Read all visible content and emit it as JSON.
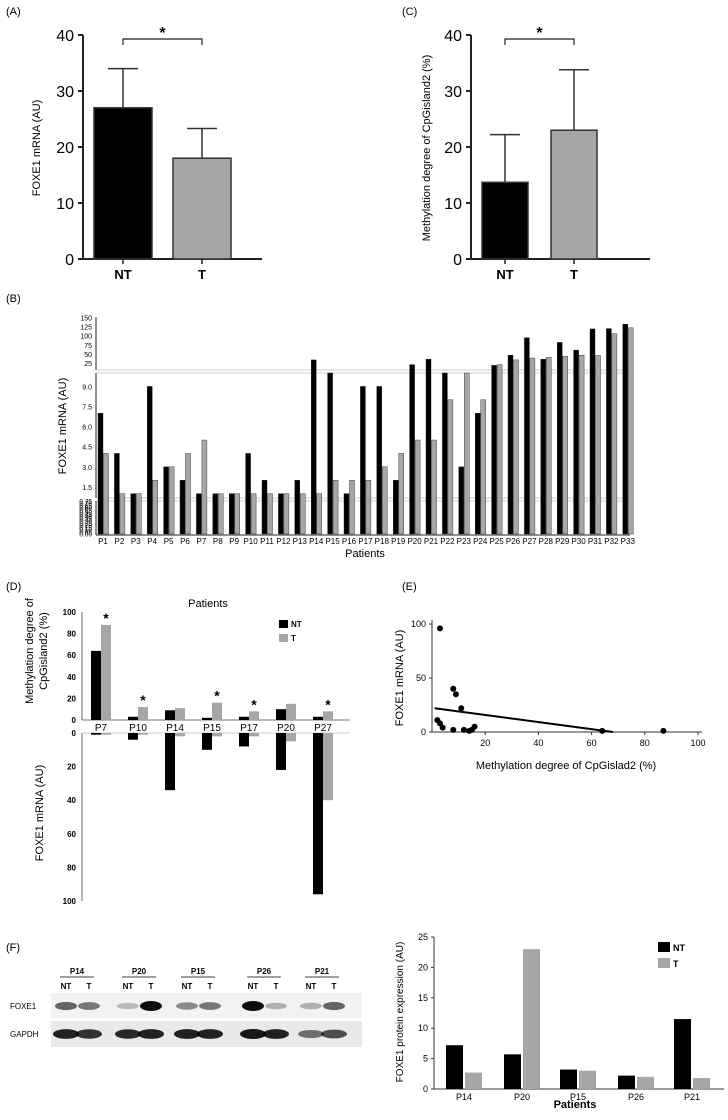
{
  "panels": {
    "A": {
      "label": "(A)",
      "chart_data": {
        "type": "bar",
        "title": "",
        "xlabel": "",
        "ylabel": "FOXE1 mRNA (AU)",
        "categories": [
          "NT",
          "T"
        ],
        "values": [
          27,
          18
        ],
        "errors": [
          7,
          5.3
        ],
        "colors": [
          "#000000",
          "#a6a6a6"
        ],
        "ylim": [
          0,
          40
        ],
        "yticks": [
          0,
          10,
          20,
          30,
          40
        ],
        "significance": "*"
      }
    },
    "C": {
      "label": "(C)",
      "chart_data": {
        "type": "bar",
        "title": "",
        "xlabel": "",
        "ylabel": "Methylation degree of CpGisland2 (%)",
        "categories": [
          "NT",
          "T"
        ],
        "values": [
          13.7,
          23
        ],
        "errors": [
          8.5,
          10.8
        ],
        "colors": [
          "#000000",
          "#a6a6a6"
        ],
        "ylim": [
          0,
          40
        ],
        "yticks": [
          0,
          10,
          20,
          30,
          40
        ],
        "significance": "*"
      }
    },
    "B": {
      "label": "(B)",
      "chart_data": {
        "type": "bar",
        "title": "",
        "xlabel": "Patients",
        "ylabel": "FOXE1 mRNA (AU)",
        "categories": [
          "P1",
          "P2",
          "P3",
          "P4",
          "P5",
          "P6",
          "P7",
          "P8",
          "P9",
          "P10",
          "P11",
          "P12",
          "P13",
          "P14",
          "P15",
          "P16",
          "P17",
          "P18",
          "P19",
          "P20",
          "P21",
          "P22",
          "P23",
          "P24",
          "P25",
          "P26",
          "P27",
          "P28",
          "P29",
          "P30",
          "P31",
          "P32",
          "P33"
        ],
        "series": [
          {
            "name": "NT",
            "color": "#000000",
            "values": [
              7,
              4,
              1,
              9,
              3,
              2,
              1,
              1,
              1,
              4,
              2,
              1,
              2,
              35,
              10,
              1,
              9,
              9,
              2,
              22,
              37,
              10,
              3,
              7,
              20,
              48,
              96,
              37,
              83,
              62,
              120,
              121,
              133
            ]
          },
          {
            "name": "T",
            "color": "#a6a6a6",
            "values": [
              4,
              1,
              1,
              2,
              3,
              4,
              5,
              1,
              1,
              1,
              1,
              1,
              1,
              1,
              2,
              2,
              2,
              3,
              4,
              5,
              5,
              8,
              10,
              8,
              22,
              35,
              40,
              42,
              45,
              48,
              47,
              107,
              123
            ]
          }
        ],
        "axis_segments": {
          "upper": {
            "range": [
              10,
              150
            ],
            "ticks": [
              "25",
              "50",
              "75",
              "100",
              "125",
              "150"
            ]
          },
          "middle": {
            "range": [
              0.75,
              10
            ],
            "ticks": [
              "1.5",
              "3.0",
              "4.5",
              "6.0",
              "7.5",
              "9.0"
            ]
          },
          "lower": {
            "range": [
              0,
              0.75
            ],
            "ticks": [
              "0.00",
              "0.05",
              "0.10",
              "0.15",
              "0.20",
              "0.25",
              "0.30",
              "0.35",
              "0.40",
              "0.45",
              "0.50",
              "0.55",
              "0.60",
              "0.65",
              "0.70",
              "0.75"
            ]
          }
        }
      }
    },
    "D": {
      "label": "(D)",
      "chart_data": {
        "type": "bar",
        "title": "Patients",
        "categories": [
          "P7",
          "P10",
          "P14",
          "P15",
          "P17",
          "P20",
          "P27"
        ],
        "top_ylabel": "Methylation degree of CpGisland2 (%)",
        "bottom_ylabel": "FOXE1 mRNA (AU)",
        "top_yticks": [
          "100",
          "80",
          "60",
          "40",
          "20",
          "0"
        ],
        "bottom_yticks": [
          "0",
          "20",
          "40",
          "60",
          "80",
          "100"
        ],
        "top_ylim": [
          0,
          100
        ],
        "bottom_ylim": [
          0,
          100
        ],
        "significance": [
          "*",
          "*",
          "",
          "*",
          "*",
          "",
          "*"
        ],
        "top_series": [
          {
            "name": "NT",
            "color": "#000000",
            "values": [
              64,
              3,
              9,
              2,
              3,
              10,
              3
            ]
          },
          {
            "name": "T",
            "color": "#a6a6a6",
            "values": [
              88,
              12,
              11,
              16,
              8,
              15,
              8
            ]
          }
        ],
        "bottom_series": [
          {
            "name": "NT",
            "color": "#000000",
            "values": [
              1,
              4,
              34,
              10,
              8,
              22,
              96
            ]
          },
          {
            "name": "T",
            "color": "#a6a6a6",
            "values": [
              1,
              1,
              2,
              2,
              2,
              5,
              40
            ]
          }
        ],
        "legend": [
          "NT",
          "T"
        ]
      }
    },
    "E": {
      "label": "(E)",
      "chart_data": {
        "type": "scatter",
        "title": "",
        "xlabel": "Methylation degree of CpGislad2 (%)",
        "ylabel": "FOXE1 mRNA (AU)",
        "xlim": [
          0,
          100
        ],
        "ylim": [
          0,
          100
        ],
        "xticks": [
          20,
          40,
          60,
          80,
          100
        ],
        "yticks": [
          0,
          50,
          100
        ],
        "points": [
          [
            3,
            96
          ],
          [
            2,
            11
          ],
          [
            3,
            8
          ],
          [
            4,
            4
          ],
          [
            8,
            40
          ],
          [
            9,
            35
          ],
          [
            11,
            22
          ],
          [
            8,
            2
          ],
          [
            12,
            2
          ],
          [
            14,
            1
          ],
          [
            15,
            2
          ],
          [
            16,
            5
          ],
          [
            64,
            1
          ],
          [
            87,
            1
          ]
        ],
        "fit_line": {
          "from": [
            1,
            22
          ],
          "to": [
            68,
            0
          ]
        }
      }
    },
    "F": {
      "label": "(F)",
      "blot": {
        "patients": [
          "P14",
          "P20",
          "P15",
          "P26",
          "P21"
        ],
        "lane_labels": [
          "NT",
          "T"
        ],
        "rows": [
          "FOXE1",
          "GAPDH"
        ]
      },
      "chart_data": {
        "type": "bar",
        "title": "",
        "xlabel": "Patients",
        "ylabel": "FOXE1 protein expression (AU)",
        "categories": [
          "P14",
          "P20",
          "P15",
          "P26",
          "P21"
        ],
        "series": [
          {
            "name": "NT",
            "color": "#000000",
            "values": [
              7.2,
              5.7,
              3.2,
              2.2,
              11.5
            ]
          },
          {
            "name": "T",
            "color": "#a6a6a6",
            "values": [
              2.7,
              23,
              3,
              2,
              1.8
            ]
          }
        ],
        "ylim": [
          0,
          25
        ],
        "yticks": [
          0,
          5,
          10,
          15,
          20,
          25
        ],
        "legend": [
          "NT",
          "T"
        ]
      }
    }
  }
}
